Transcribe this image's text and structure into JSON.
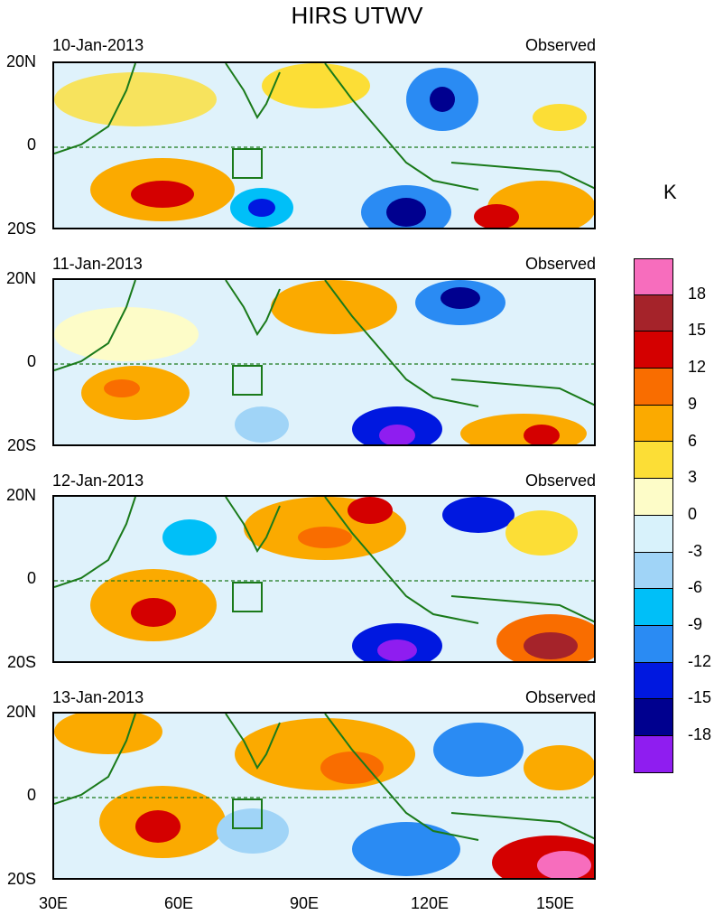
{
  "title": "HIRS UTWV",
  "units": "K",
  "panels": [
    {
      "date": "10-Jan-2013",
      "tag": "Observed"
    },
    {
      "date": "11-Jan-2013",
      "tag": "Observed"
    },
    {
      "date": "12-Jan-2013",
      "tag": "Observed"
    },
    {
      "date": "13-Jan-2013",
      "tag": "Observed"
    }
  ],
  "y_ticks": [
    "20N",
    "0",
    "20S"
  ],
  "x_ticks": [
    "30E",
    "60E",
    "90E",
    "120E",
    "150E"
  ],
  "colorbar": {
    "labels": [
      "18",
      "15",
      "12",
      "9",
      "6",
      "3",
      "0",
      "-3",
      "-6",
      "-9",
      "-12",
      "-15",
      "-18"
    ],
    "colors": [
      "#f76dbd",
      "#a5232a",
      "#d40000",
      "#f96d00",
      "#fbaa00",
      "#fcde36",
      "#fdfcc8",
      "#d8f2fb",
      "#a0d4f7",
      "#00bff8",
      "#2a8bf3",
      "#0018e0",
      "#00008f",
      "#8f1df0"
    ]
  },
  "colors": {
    "coast": "#1a7a1a",
    "frame": "#000000"
  }
}
